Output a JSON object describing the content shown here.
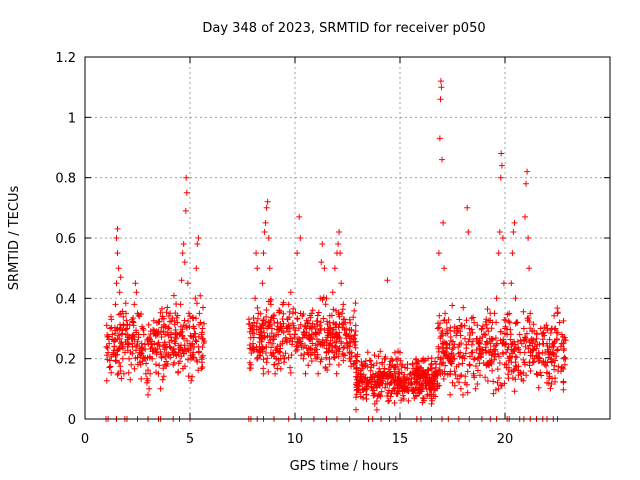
{
  "chart_data": {
    "type": "scatter",
    "title": "Day 348 of 2023, SRMTID for receiver p050",
    "xlabel": "GPS time / hours",
    "ylabel": "SRMTID / TECUs",
    "xlim": [
      0,
      25
    ],
    "ylim": [
      0,
      1.2
    ],
    "x_ticks": [
      0,
      5,
      10,
      15,
      20
    ],
    "x_tick_labels": [
      "0",
      "5",
      "10",
      "15",
      "20"
    ],
    "y_ticks": [
      0,
      0.2,
      0.4,
      0.6,
      0.8,
      1.0,
      1.2
    ],
    "y_tick_labels": [
      "0",
      "0.2",
      "0.4",
      "0.6",
      "0.8",
      "1",
      "1.2"
    ],
    "grid": true,
    "marker": "+",
    "colors": {
      "points": "#ff0000",
      "grid": "#a0a0a0",
      "axes": "#000000"
    },
    "series": [
      {
        "name": "SRMTID",
        "points": [
          [
            1.1,
            0.22
          ],
          [
            1.15,
            0.25
          ],
          [
            1.2,
            0.3
          ],
          [
            1.25,
            0.33
          ],
          [
            1.3,
            0.28
          ],
          [
            1.35,
            0.22
          ],
          [
            1.4,
            0.24
          ],
          [
            1.45,
            0.38
          ],
          [
            1.5,
            0.45
          ],
          [
            1.5,
            0.6
          ],
          [
            1.55,
            0.63
          ],
          [
            1.55,
            0.55
          ],
          [
            1.6,
            0.5
          ],
          [
            1.65,
            0.42
          ],
          [
            1.7,
            0.35
          ],
          [
            1.7,
            0.47
          ],
          [
            1.75,
            0.28
          ],
          [
            1.8,
            0.2
          ],
          [
            1.85,
            0.15
          ],
          [
            1.9,
            0.22
          ],
          [
            1.95,
            0.35
          ],
          [
            2.0,
            0.3
          ],
          [
            2.05,
            0.25
          ],
          [
            2.1,
            0.2
          ],
          [
            2.15,
            0.13
          ],
          [
            2.2,
            0.18
          ],
          [
            2.25,
            0.25
          ],
          [
            2.3,
            0.32
          ],
          [
            2.35,
            0.38
          ],
          [
            2.4,
            0.45
          ],
          [
            2.45,
            0.42
          ],
          [
            2.5,
            0.35
          ],
          [
            2.55,
            0.28
          ],
          [
            2.6,
            0.22
          ],
          [
            2.65,
            0.18
          ],
          [
            2.7,
            0.25
          ],
          [
            2.75,
            0.3
          ],
          [
            2.8,
            0.28
          ],
          [
            2.85,
            0.2
          ],
          [
            2.9,
            0.15
          ],
          [
            2.95,
            0.12
          ],
          [
            3.0,
            0.08
          ],
          [
            3.05,
            0.1
          ],
          [
            3.1,
            0.15
          ],
          [
            3.2,
            0.2
          ],
          [
            3.3,
            0.25
          ],
          [
            3.4,
            0.22
          ],
          [
            3.5,
            0.15
          ],
          [
            3.6,
            0.1
          ],
          [
            3.7,
            0.13
          ],
          [
            3.8,
            0.18
          ],
          [
            3.9,
            0.24
          ],
          [
            4.0,
            0.3
          ],
          [
            4.05,
            0.35
          ],
          [
            4.1,
            0.28
          ],
          [
            4.15,
            0.22
          ],
          [
            4.2,
            0.18
          ],
          [
            4.3,
            0.25
          ],
          [
            4.4,
            0.32
          ],
          [
            4.45,
            0.22
          ],
          [
            4.5,
            0.28
          ],
          [
            4.55,
            0.38
          ],
          [
            4.6,
            0.46
          ],
          [
            4.65,
            0.55
          ],
          [
            4.7,
            0.58
          ],
          [
            4.75,
            0.52
          ],
          [
            4.8,
            0.69
          ],
          [
            4.82,
            0.8
          ],
          [
            4.85,
            0.75
          ],
          [
            4.9,
            0.45
          ],
          [
            4.95,
            0.35
          ],
          [
            5.0,
            0.25
          ],
          [
            5.05,
            0.2
          ],
          [
            5.1,
            0.14
          ],
          [
            5.15,
            0.22
          ],
          [
            5.2,
            0.3
          ],
          [
            5.25,
            0.4
          ],
          [
            5.3,
            0.5
          ],
          [
            5.35,
            0.58
          ],
          [
            5.4,
            0.6
          ],
          [
            5.45,
            0.35
          ],
          [
            5.5,
            0.32
          ],
          [
            5.55,
            0.28
          ],
          [
            5.6,
            0.3
          ],
          [
            7.9,
            0.18
          ],
          [
            8.0,
            0.25
          ],
          [
            8.05,
            0.32
          ],
          [
            8.1,
            0.4
          ],
          [
            8.15,
            0.55
          ],
          [
            8.2,
            0.5
          ],
          [
            8.25,
            0.35
          ],
          [
            8.3,
            0.28
          ],
          [
            8.35,
            0.22
          ],
          [
            8.4,
            0.3
          ],
          [
            8.45,
            0.45
          ],
          [
            8.5,
            0.55
          ],
          [
            8.55,
            0.62
          ],
          [
            8.6,
            0.65
          ],
          [
            8.65,
            0.7
          ],
          [
            8.7,
            0.72
          ],
          [
            8.75,
            0.6
          ],
          [
            8.8,
            0.5
          ],
          [
            8.85,
            0.38
          ],
          [
            8.9,
            0.3
          ],
          [
            8.95,
            0.22
          ],
          [
            9.0,
            0.18
          ],
          [
            9.05,
            0.15
          ],
          [
            9.1,
            0.2
          ],
          [
            9.2,
            0.28
          ],
          [
            9.3,
            0.3
          ],
          [
            9.4,
            0.25
          ],
          [
            9.5,
            0.2
          ],
          [
            9.6,
            0.3
          ],
          [
            9.7,
            0.38
          ],
          [
            9.8,
            0.42
          ],
          [
            9.9,
            0.35
          ],
          [
            10.0,
            0.28
          ],
          [
            10.1,
            0.55
          ],
          [
            10.2,
            0.67
          ],
          [
            10.25,
            0.6
          ],
          [
            10.3,
            0.25
          ],
          [
            10.4,
            0.2
          ],
          [
            10.5,
            0.15
          ],
          [
            10.6,
            0.22
          ],
          [
            10.7,
            0.3
          ],
          [
            10.8,
            0.35
          ],
          [
            10.9,
            0.28
          ],
          [
            11.0,
            0.2
          ],
          [
            11.1,
            0.15
          ],
          [
            11.2,
            0.4
          ],
          [
            11.25,
            0.52
          ],
          [
            11.3,
            0.58
          ],
          [
            11.4,
            0.5
          ],
          [
            11.5,
            0.4
          ],
          [
            11.6,
            0.3
          ],
          [
            11.7,
            0.25
          ],
          [
            11.8,
            0.42
          ],
          [
            11.9,
            0.5
          ],
          [
            12.0,
            0.55
          ],
          [
            12.05,
            0.58
          ],
          [
            12.1,
            0.62
          ],
          [
            12.15,
            0.55
          ],
          [
            12.2,
            0.45
          ],
          [
            12.3,
            0.38
          ],
          [
            12.4,
            0.32
          ],
          [
            12.5,
            0.25
          ],
          [
            12.6,
            0.2
          ],
          [
            12.7,
            0.22
          ],
          [
            12.8,
            0.18
          ],
          [
            12.9,
            0.14
          ],
          [
            13.0,
            0.12
          ],
          [
            13.1,
            0.15
          ],
          [
            13.2,
            0.18
          ],
          [
            13.3,
            0.1
          ],
          [
            13.4,
            0.08
          ],
          [
            13.5,
            0.12
          ],
          [
            13.6,
            0.16
          ],
          [
            13.7,
            0.14
          ],
          [
            13.8,
            0.05
          ],
          [
            13.9,
            0.03
          ],
          [
            14.0,
            0.08
          ],
          [
            14.1,
            0.12
          ],
          [
            14.2,
            0.15
          ],
          [
            14.3,
            0.2
          ],
          [
            14.4,
            0.46
          ],
          [
            14.5,
            0.18
          ],
          [
            14.6,
            0.12
          ],
          [
            14.7,
            0.1
          ],
          [
            14.8,
            0.15
          ],
          [
            14.9,
            0.2
          ],
          [
            15.0,
            0.22
          ],
          [
            15.1,
            0.18
          ],
          [
            15.2,
            0.14
          ],
          [
            15.3,
            0.1
          ],
          [
            15.4,
            0.12
          ],
          [
            15.5,
            0.15
          ],
          [
            15.6,
            0.18
          ],
          [
            15.7,
            0.12
          ],
          [
            15.8,
            0.1
          ],
          [
            15.9,
            0.14
          ],
          [
            16.0,
            0.17
          ],
          [
            16.1,
            0.2
          ],
          [
            16.2,
            0.15
          ],
          [
            16.3,
            0.12
          ],
          [
            16.4,
            0.1
          ],
          [
            16.5,
            0.05
          ],
          [
            16.6,
            0.08
          ],
          [
            16.7,
            0.15
          ],
          [
            16.8,
            0.3
          ],
          [
            16.85,
            0.55
          ],
          [
            16.9,
            0.93
          ],
          [
            16.93,
            1.06
          ],
          [
            16.95,
            1.12
          ],
          [
            16.97,
            1.1
          ],
          [
            17.0,
            0.86
          ],
          [
            17.05,
            0.65
          ],
          [
            17.1,
            0.5
          ],
          [
            17.15,
            0.35
          ],
          [
            17.2,
            0.25
          ],
          [
            17.3,
            0.2
          ],
          [
            17.4,
            0.15
          ],
          [
            17.5,
            0.12
          ],
          [
            17.6,
            0.2
          ],
          [
            17.7,
            0.3
          ],
          [
            17.8,
            0.18
          ],
          [
            17.9,
            0.1
          ],
          [
            18.0,
            0.08
          ],
          [
            18.1,
            0.12
          ],
          [
            18.2,
            0.7
          ],
          [
            18.25,
            0.62
          ],
          [
            18.3,
            0.3
          ],
          [
            18.4,
            0.22
          ],
          [
            18.5,
            0.15
          ],
          [
            18.6,
            0.1
          ],
          [
            18.7,
            0.2
          ],
          [
            18.8,
            0.25
          ],
          [
            18.9,
            0.3
          ],
          [
            19.0,
            0.28
          ],
          [
            19.1,
            0.22
          ],
          [
            19.2,
            0.18
          ],
          [
            19.3,
            0.25
          ],
          [
            19.4,
            0.32
          ],
          [
            19.5,
            0.35
          ],
          [
            19.6,
            0.4
          ],
          [
            19.7,
            0.55
          ],
          [
            19.75,
            0.62
          ],
          [
            19.8,
            0.8
          ],
          [
            19.82,
            0.88
          ],
          [
            19.85,
            0.84
          ],
          [
            19.9,
            0.6
          ],
          [
            19.95,
            0.45
          ],
          [
            20.0,
            0.3
          ],
          [
            20.1,
            0.28
          ],
          [
            20.2,
            0.35
          ],
          [
            20.3,
            0.45
          ],
          [
            20.35,
            0.55
          ],
          [
            20.4,
            0.62
          ],
          [
            20.45,
            0.65
          ],
          [
            20.5,
            0.4
          ],
          [
            20.6,
            0.32
          ],
          [
            20.7,
            0.28
          ],
          [
            20.8,
            0.25
          ],
          [
            20.9,
            0.3
          ],
          [
            20.95,
            0.67
          ],
          [
            21.0,
            0.78
          ],
          [
            21.05,
            0.82
          ],
          [
            21.1,
            0.6
          ],
          [
            21.15,
            0.5
          ],
          [
            21.2,
            0.35
          ],
          [
            21.3,
            0.25
          ],
          [
            21.4,
            0.2
          ],
          [
            21.5,
            0.15
          ],
          [
            21.6,
            0.22
          ],
          [
            21.7,
            0.3
          ],
          [
            21.8,
            0.25
          ],
          [
            21.9,
            0.18
          ],
          [
            22.0,
            0.12
          ],
          [
            22.1,
            0.15
          ],
          [
            22.2,
            0.2
          ],
          [
            22.3,
            0.25
          ],
          [
            22.4,
            0.3
          ],
          [
            22.5,
            0.35
          ],
          [
            22.6,
            0.32
          ],
          [
            22.7,
            0.25
          ],
          [
            22.8,
            0.2
          ],
          [
            22.85,
            0.18
          ]
        ],
        "dense_bands": [
          {
            "x_range": [
              1.0,
              5.7
            ],
            "y_range": [
              0.08,
              0.42
            ],
            "count": 330
          },
          {
            "x_range": [
              7.8,
              12.9
            ],
            "y_range": [
              0.12,
              0.42
            ],
            "count": 420
          },
          {
            "x_range": [
              12.9,
              16.8
            ],
            "y_range": [
              0.02,
              0.24
            ],
            "count": 420
          },
          {
            "x_range": [
              16.8,
              22.9
            ],
            "y_range": [
              0.06,
              0.4
            ],
            "count": 460
          }
        ],
        "zero_points": [
          1.0,
          1.1,
          1.5,
          1.9,
          2.0,
          2.5,
          3.0,
          3.5,
          3.6,
          4.2,
          4.5,
          5.0,
          7.8,
          7.9,
          8.2,
          8.5,
          9.0,
          9.7,
          10.3,
          10.9,
          11.5,
          12.0,
          12.6,
          13.5,
          13.7,
          14.1,
          14.5,
          14.8,
          15.8,
          16.0,
          16.5,
          17.0,
          17.3,
          17.8,
          18.3,
          18.9,
          19.3,
          19.6,
          20.1,
          20.2,
          20.7,
          20.9,
          21.2,
          21.5,
          21.8,
          22.0,
          22.3,
          22.5
        ]
      }
    ]
  }
}
